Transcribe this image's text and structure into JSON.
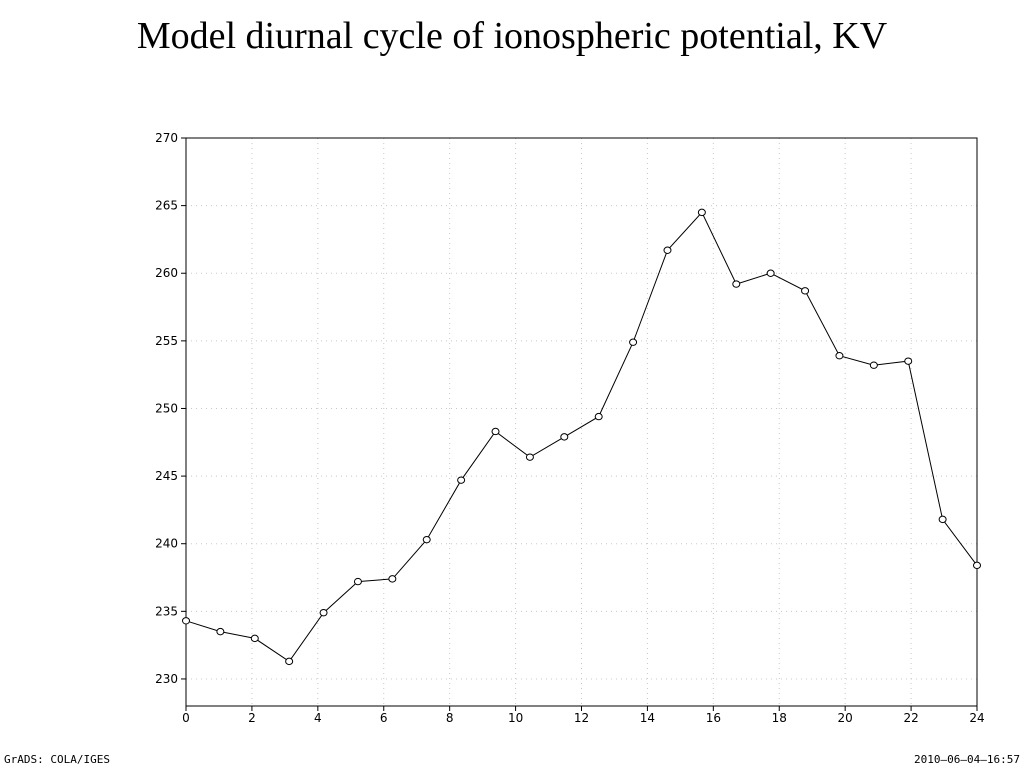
{
  "chart_data": {
    "type": "line",
    "title": "Model diurnal cycle of ionospheric potential, KV",
    "xlabel": "",
    "ylabel": "",
    "xlim": [
      0,
      24
    ],
    "ylim": [
      228,
      270
    ],
    "x_ticks": [
      0,
      2,
      4,
      6,
      8,
      10,
      12,
      14,
      16,
      18,
      20,
      22,
      24
    ],
    "y_ticks": [
      230,
      235,
      240,
      245,
      250,
      255,
      260,
      265,
      270
    ],
    "grid": true,
    "marker": "open-circle",
    "line_color": "#000000",
    "series": [
      {
        "x": [
          0,
          1.043,
          2.087,
          3.13,
          4.174,
          5.217,
          6.261,
          7.304,
          8.348,
          9.391,
          10.435,
          11.478,
          12.522,
          13.565,
          14.609,
          15.652,
          16.696,
          17.739,
          18.783,
          19.826,
          20.87,
          21.913,
          22.957,
          24
        ],
        "values": [
          234.3,
          233.5,
          233.0,
          231.3,
          234.9,
          237.2,
          237.4,
          240.3,
          244.7,
          248.3,
          246.4,
          247.9,
          249.4,
          254.9,
          261.7,
          264.5,
          259.2,
          260.0,
          258.7,
          253.9,
          253.2,
          253.5,
          241.8,
          238.4
        ]
      }
    ]
  },
  "footer": {
    "left": "GrADS: COLA/IGES",
    "right": "2010–06–04–16:57"
  }
}
